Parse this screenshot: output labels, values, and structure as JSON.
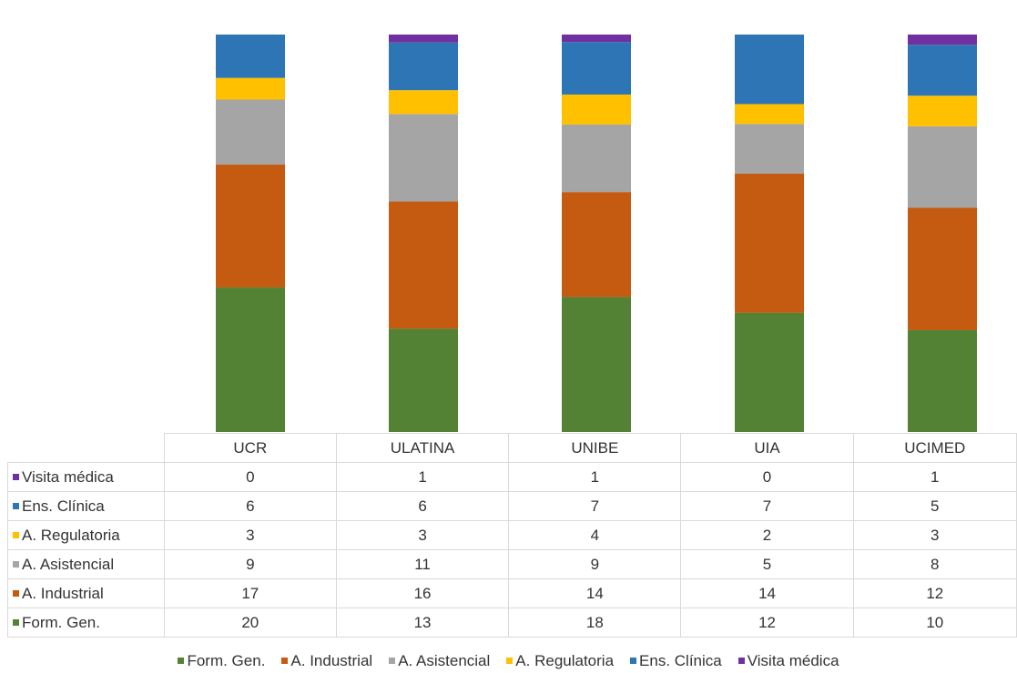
{
  "chart_data": {
    "type": "bar",
    "stacked": true,
    "normalized_100_percent": true,
    "categories": [
      "UCR",
      "ULATINA",
      "UNIBE",
      "UIA",
      "UCIMED"
    ],
    "series": [
      {
        "name": "Form. Gen.",
        "color": "#548235",
        "values": [
          20,
          13,
          18,
          12,
          10
        ]
      },
      {
        "name": "A. Industrial",
        "color": "#c55a11",
        "values": [
          17,
          16,
          14,
          14,
          12
        ]
      },
      {
        "name": "A. Asistencial",
        "color": "#a5a5a5",
        "values": [
          9,
          11,
          9,
          5,
          8
        ]
      },
      {
        "name": "A. Regulatoria",
        "color": "#ffc000",
        "values": [
          3,
          3,
          4,
          2,
          3
        ]
      },
      {
        "name": "Ens. Clínica",
        "color": "#2e75b6",
        "values": [
          6,
          6,
          7,
          7,
          5
        ]
      },
      {
        "name": "Visita médica",
        "color": "#7030a0",
        "values": [
          0,
          1,
          1,
          0,
          1
        ]
      }
    ],
    "data_table": true,
    "legend_position": "bottom",
    "gridlines": false
  }
}
